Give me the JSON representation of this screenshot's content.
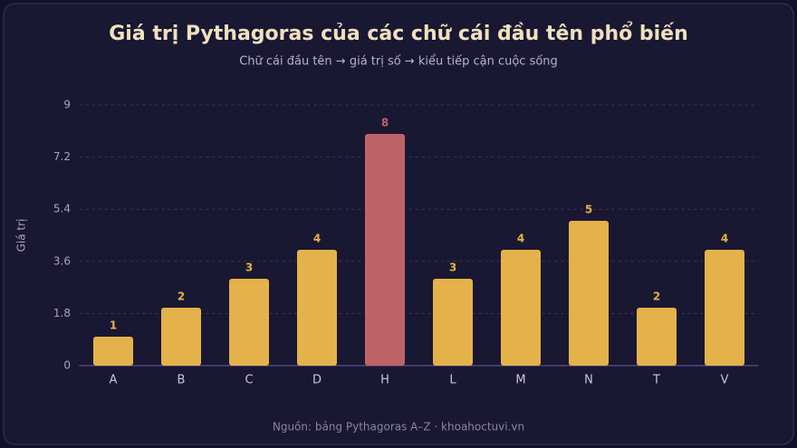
{
  "chart_data": {
    "type": "bar",
    "title": "Giá trị Pythagoras của các chữ cái đầu tên phổ biến",
    "subtitle": "Chữ cái đầu tên → giá trị số → kiểu tiếp cận cuộc sống",
    "y_label": "Giá trị",
    "source": "Nguồn: bảng Pythagoras A–Z · khoahoctuvi.vn",
    "categories": [
      "A",
      "B",
      "C",
      "D",
      "H",
      "L",
      "M",
      "N",
      "T",
      "V"
    ],
    "values": [
      1,
      2,
      3,
      4,
      8,
      3,
      4,
      5,
      2,
      4
    ],
    "colors": [
      "#e4b24a",
      "#e4b24a",
      "#e4b24a",
      "#e4b24a",
      "#be6469",
      "#e4b24a",
      "#e4b24a",
      "#e4b24a",
      "#e4b24a",
      "#e4b24a"
    ],
    "ylim": [
      0,
      9
    ],
    "yticks": [
      0,
      1.8,
      3.6,
      5.4,
      7.2,
      9
    ],
    "grid": true
  }
}
